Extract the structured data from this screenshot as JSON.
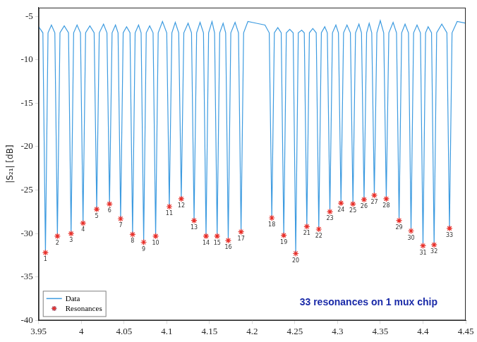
{
  "chart_data": {
    "type": "line",
    "y_label": "|S₂₁| [dB]",
    "annotations": [
      "33 resonances on 1 mux chip"
    ],
    "xlim": [
      3.95,
      4.45
    ],
    "xticks": [
      3.95,
      4,
      4.05,
      4.1,
      4.15,
      4.2,
      4.25,
      4.3,
      4.35,
      4.4,
      4.45
    ],
    "ylim": [
      -40,
      -4
    ],
    "yticks": [
      -40,
      -35,
      -30,
      -25,
      -20,
      -15,
      -10,
      -5
    ],
    "grid": false,
    "legend": "lower left",
    "series": [
      {
        "name": "Data",
        "type": "line",
        "color": "#3d9be0",
        "line_style": "solid",
        "x": [
          3.95,
          3.955,
          3.958,
          3.961,
          3.965,
          3.969,
          3.972,
          3.975,
          3.98,
          3.985,
          3.988,
          3.991,
          3.995,
          3.999,
          4.002,
          4.005,
          4.01,
          4.015,
          4.018,
          4.021,
          4.026,
          4.03,
          4.033,
          4.036,
          4.04,
          4.043,
          4.046,
          4.049,
          4.053,
          4.057,
          4.06,
          4.063,
          4.067,
          4.07,
          4.073,
          4.076,
          4.08,
          4.084,
          4.087,
          4.09,
          4.095,
          4.1,
          4.103,
          4.106,
          4.11,
          4.114,
          4.117,
          4.12,
          4.125,
          4.129,
          4.132,
          4.135,
          4.139,
          4.143,
          4.146,
          4.149,
          4.153,
          4.156,
          4.159,
          4.162,
          4.166,
          4.169,
          4.172,
          4.175,
          4.18,
          4.184,
          4.187,
          4.19,
          4.195,
          4.205,
          4.215,
          4.22,
          4.223,
          4.226,
          4.23,
          4.234,
          4.237,
          4.24,
          4.244,
          4.248,
          4.251,
          4.254,
          4.258,
          4.261,
          4.264,
          4.267,
          4.271,
          4.275,
          4.278,
          4.281,
          4.285,
          4.288,
          4.291,
          4.294,
          4.298,
          4.301,
          4.304,
          4.307,
          4.311,
          4.315,
          4.318,
          4.321,
          4.325,
          4.328,
          4.331,
          4.334,
          4.337,
          4.34,
          4.343,
          4.346,
          4.35,
          4.354,
          4.357,
          4.36,
          4.365,
          4.369,
          4.372,
          4.375,
          4.379,
          4.383,
          4.386,
          4.389,
          4.393,
          4.397,
          4.4,
          4.403,
          4.406,
          4.41,
          4.413,
          4.416,
          4.422,
          4.428,
          4.431,
          4.434,
          4.44,
          4.45
        ],
        "values": [
          -6.2,
          -6.9,
          -32.2,
          -6.9,
          -6.0,
          -6.9,
          -30.3,
          -6.9,
          -6.1,
          -6.9,
          -30.0,
          -6.9,
          -6.0,
          -6.9,
          -28.8,
          -6.9,
          -6.1,
          -6.9,
          -27.2,
          -6.9,
          -5.9,
          -6.9,
          -26.6,
          -6.9,
          -6.0,
          -6.9,
          -28.3,
          -6.9,
          -6.2,
          -6.9,
          -30.1,
          -6.9,
          -6.0,
          -6.9,
          -31.0,
          -6.9,
          -6.1,
          -6.9,
          -30.3,
          -6.9,
          -5.6,
          -6.9,
          -26.9,
          -6.9,
          -5.7,
          -6.9,
          -26.0,
          -6.9,
          -5.8,
          -6.9,
          -28.5,
          -6.9,
          -5.7,
          -6.9,
          -30.3,
          -6.9,
          -5.6,
          -6.9,
          -30.3,
          -6.9,
          -5.8,
          -6.9,
          -30.8,
          -6.9,
          -5.7,
          -6.9,
          -29.8,
          -6.9,
          -5.6,
          -5.8,
          -6.0,
          -6.9,
          -28.2,
          -6.9,
          -6.3,
          -6.9,
          -30.2,
          -6.9,
          -6.5,
          -6.9,
          -32.3,
          -6.9,
          -6.6,
          -6.9,
          -29.2,
          -6.9,
          -6.4,
          -6.9,
          -29.5,
          -6.9,
          -6.2,
          -6.9,
          -27.5,
          -6.9,
          -6.0,
          -6.9,
          -26.5,
          -6.9,
          -6.0,
          -6.9,
          -26.6,
          -6.9,
          -5.9,
          -6.9,
          -26.1,
          -6.9,
          -5.8,
          -6.9,
          -25.6,
          -6.9,
          -5.5,
          -6.9,
          -26.0,
          -6.9,
          -5.7,
          -6.9,
          -28.5,
          -6.9,
          -5.9,
          -6.9,
          -29.7,
          -6.9,
          -6.0,
          -6.9,
          -31.4,
          -6.9,
          -6.2,
          -6.9,
          -31.3,
          -6.9,
          -5.9,
          -6.9,
          -29.4,
          -6.9,
          -5.6,
          -5.8
        ]
      },
      {
        "name": "Resonances",
        "type": "scatter",
        "color": "#e8302a",
        "marker": "star",
        "x": [
          3.958,
          3.972,
          3.988,
          4.002,
          4.018,
          4.033,
          4.046,
          4.06,
          4.073,
          4.087,
          4.103,
          4.117,
          4.132,
          4.146,
          4.159,
          4.172,
          4.187,
          4.223,
          4.237,
          4.251,
          4.264,
          4.278,
          4.291,
          4.304,
          4.318,
          4.331,
          4.343,
          4.357,
          4.372,
          4.386,
          4.4,
          4.413,
          4.431
        ],
        "values": [
          -32.2,
          -30.3,
          -30.0,
          -28.8,
          -27.2,
          -26.6,
          -28.3,
          -30.1,
          -31.0,
          -30.3,
          -26.9,
          -26.0,
          -28.5,
          -30.3,
          -30.3,
          -30.8,
          -29.8,
          -28.2,
          -30.2,
          -32.3,
          -29.2,
          -29.5,
          -27.5,
          -26.5,
          -26.6,
          -26.1,
          -25.6,
          -26.0,
          -28.5,
          -29.7,
          -31.4,
          -31.3,
          -29.4
        ],
        "labels": [
          "1",
          "2",
          "3",
          "4",
          "5",
          "6",
          "7",
          "8",
          "9",
          "10",
          "11",
          "12",
          "13",
          "14",
          "15",
          "16",
          "17",
          "18",
          "19",
          "20",
          "21",
          "22",
          "23",
          "24",
          "25",
          "26",
          "27",
          "28",
          "29",
          "30",
          "31",
          "32",
          "33"
        ]
      }
    ]
  }
}
